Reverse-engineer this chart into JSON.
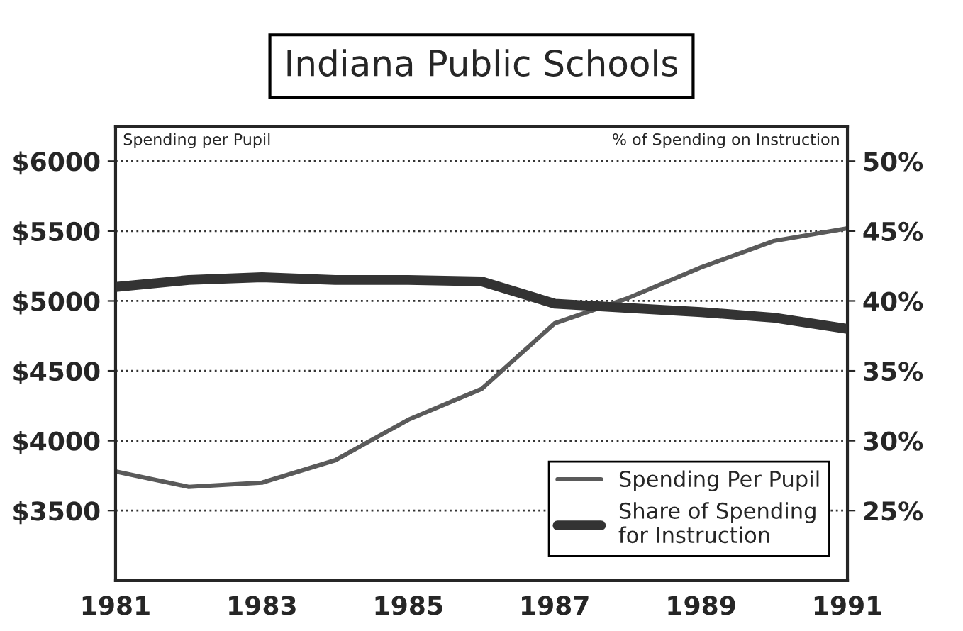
{
  "chart_data": {
    "type": "line",
    "title": "Indiana Public Schools",
    "ylabel": "Spending per Pupil",
    "y2label": "% of Spending on Instruction",
    "x": [
      1981,
      1982,
      1983,
      1984,
      1985,
      1986,
      1987,
      1988,
      1989,
      1990,
      1991
    ],
    "series": [
      {
        "name": "Spending Per Pupil",
        "color": "#5a5a5a",
        "values": [
          3780,
          3670,
          3700,
          3860,
          4150,
          4370,
          4840,
          5020,
          5240,
          5430,
          5520
        ]
      },
      {
        "name": "Share of Spending\nfor Instruction",
        "color": "#333333",
        "axis": "y2",
        "values": [
          41.0,
          41.5,
          41.7,
          41.5,
          41.5,
          41.4,
          39.8,
          39.5,
          39.2,
          38.8,
          38.0
        ]
      }
    ],
    "xlim": [
      1981,
      1991
    ],
    "xticks": [
      1981,
      1983,
      1985,
      1987,
      1989,
      1991
    ],
    "ylim": [
      3000,
      6250
    ],
    "yticks": [
      {
        "value": 3500,
        "label": "$3500"
      },
      {
        "value": 4000,
        "label": "$4000"
      },
      {
        "value": 4500,
        "label": "$4500"
      },
      {
        "value": 5000,
        "label": "$5000"
      },
      {
        "value": 5500,
        "label": "$5500"
      },
      {
        "value": 6000,
        "label": "$6000"
      }
    ],
    "y2lim": [
      20,
      52.5
    ],
    "y2ticks": [
      {
        "value": 25,
        "label": "25%"
      },
      {
        "value": 30,
        "label": "30%"
      },
      {
        "value": 35,
        "label": "35%"
      },
      {
        "value": 40,
        "label": "40%"
      },
      {
        "value": 45,
        "label": "45%"
      },
      {
        "value": 50,
        "label": "50%"
      }
    ],
    "grid": "y",
    "legend": "bottom right",
    "marker": "none",
    "line_style": "solid"
  }
}
